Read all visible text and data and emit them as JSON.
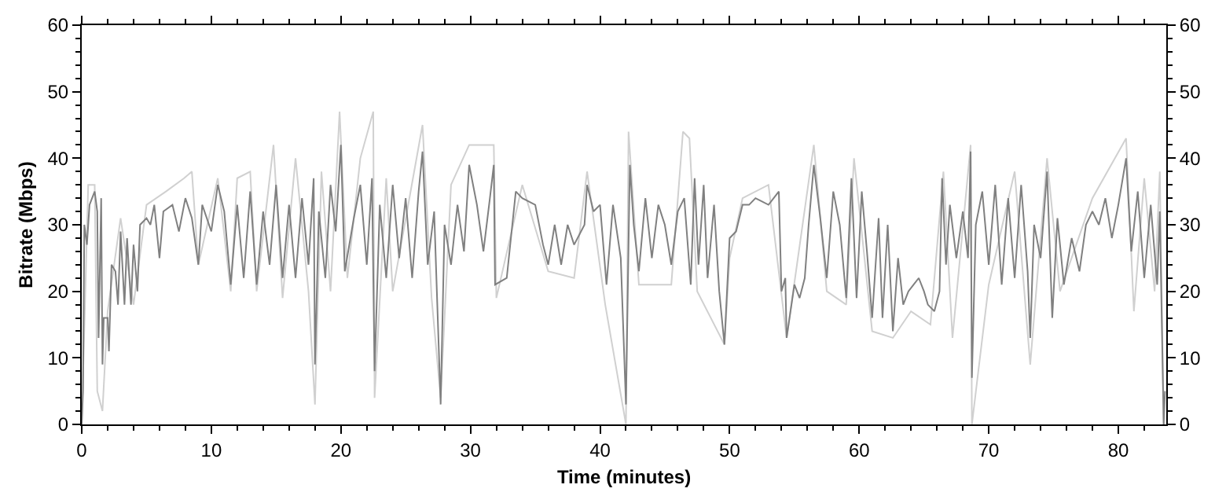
{
  "chart_data": {
    "type": "line",
    "xlabel": "Time (minutes)",
    "ylabel": "Bitrate (Mbps)",
    "xlim": [
      0,
      83.7
    ],
    "xticks": [
      0,
      10,
      20,
      30,
      40,
      50,
      60,
      70,
      80
    ],
    "ylim": [
      0,
      60
    ],
    "yticks": [
      0,
      10,
      20,
      30,
      40,
      50,
      60
    ],
    "y2lim": [
      0,
      60
    ],
    "y2ticks": [
      0,
      10,
      20,
      30,
      40,
      50,
      60
    ],
    "marker": "none",
    "line_style": "solid",
    "series": [
      {
        "color": "#d0d0d0",
        "x": [
          0,
          0.5,
          1.0,
          1.2,
          1.6,
          2,
          3,
          4,
          5,
          6.5,
          7.9,
          8.5,
          9,
          10.5,
          11.5,
          12,
          13,
          13.5,
          14.8,
          15.5,
          16.5,
          17.5,
          18.0,
          18.5,
          19.2,
          19.9,
          20.5,
          21.5,
          22.5,
          22.6,
          23.5,
          24,
          26.3,
          27,
          27.7,
          28.5,
          29.9,
          31.8,
          32,
          34,
          36,
          38,
          39,
          40.4,
          42.0,
          42.2,
          43,
          45.5,
          46.4,
          46.9,
          47.5,
          49.6,
          50,
          51,
          53,
          54.4,
          56.5,
          57.5,
          59,
          59.6,
          61,
          62.6,
          64,
          65.5,
          66.5,
          67.2,
          68.6,
          68.7,
          70,
          72,
          73.2,
          74.5,
          75.5,
          78,
          80.6,
          81.2,
          82,
          82.8,
          83.2,
          83.5
        ],
        "values": [
          0,
          36,
          36,
          5,
          2,
          17,
          31,
          18,
          33,
          35,
          37,
          38,
          24,
          37,
          20,
          37,
          38,
          20,
          42,
          19,
          40,
          20,
          3,
          38,
          20,
          47,
          22,
          40,
          47,
          4,
          37,
          20,
          45,
          19,
          4,
          36,
          42,
          42,
          19,
          36,
          23,
          22,
          38,
          18,
          0,
          44,
          21,
          21,
          44,
          43,
          20,
          12,
          25,
          34,
          36,
          13,
          42,
          20,
          18,
          40,
          14,
          13,
          17,
          15,
          38,
          13,
          42,
          0,
          21,
          38,
          9,
          40,
          20,
          34,
          43,
          17,
          37,
          20,
          38,
          0
        ]
      },
      {
        "color": "#808080",
        "x": [
          0,
          0.1,
          0.2,
          0.4,
          0.6,
          0.8,
          1.0,
          1.2,
          1.3,
          1.5,
          1.6,
          1.7,
          2.0,
          2.1,
          2.3,
          2.6,
          2.8,
          3.0,
          3.3,
          3.5,
          3.8,
          4.0,
          4.3,
          4.5,
          5,
          5.3,
          5.6,
          6,
          6.3,
          7,
          7.5,
          8,
          8.5,
          9,
          9.3,
          10,
          10.5,
          11,
          11.5,
          12,
          12.5,
          13,
          13.5,
          14,
          14.5,
          15,
          15.5,
          16,
          16.5,
          17,
          17.5,
          17.9,
          18.0,
          18.3,
          18.8,
          19.2,
          19.6,
          20,
          20.3,
          21,
          21.5,
          22,
          22.4,
          22.6,
          23,
          23.5,
          24,
          24.5,
          25,
          25.5,
          26,
          26.3,
          26.7,
          27.2,
          27.7,
          28,
          28.5,
          29,
          29.5,
          29.9,
          30.5,
          31,
          31.5,
          31.8,
          31.9,
          32.8,
          33.5,
          34,
          35,
          35.6,
          36,
          36.5,
          37,
          37.5,
          38,
          38.8,
          39,
          39.5,
          40,
          40.5,
          41,
          41.6,
          42.0,
          42.3,
          42.6,
          43,
          43.5,
          44,
          44.5,
          45,
          45.5,
          46,
          46.5,
          47,
          47.3,
          47.6,
          48,
          48.3,
          48.8,
          49.2,
          49.6,
          50,
          50.5,
          51,
          51.5,
          52,
          53,
          53.8,
          54.0,
          54.3,
          54.4,
          55,
          55.4,
          55.8,
          56.1,
          56.5,
          57,
          57.5,
          58,
          58.5,
          59,
          59.4,
          59.8,
          60.2,
          60.6,
          61,
          61.5,
          61.8,
          62.2,
          62.6,
          63.0,
          63.4,
          63.8,
          64.2,
          64.6,
          65,
          65.3,
          65.8,
          66.2,
          66.4,
          66.7,
          67,
          67.5,
          68,
          68.4,
          68.6,
          68.7,
          69,
          69.5,
          70,
          70.5,
          71,
          71.5,
          72,
          72.5,
          73,
          73.2,
          73.5,
          74,
          74.5,
          74.9,
          75.3,
          75.8,
          76.4,
          77,
          77.5,
          78,
          78.5,
          79,
          79.5,
          80,
          80.6,
          81,
          81.5,
          82,
          82.5,
          83,
          83.2,
          83.5,
          83.6
        ],
        "values": [
          0,
          5,
          30,
          27,
          33,
          34,
          35,
          32,
          13,
          34,
          9,
          16,
          16,
          11,
          24,
          23,
          18,
          29,
          18,
          28,
          18,
          27,
          20,
          30,
          31,
          30,
          33,
          25,
          32,
          33,
          29,
          34,
          31,
          24,
          33,
          29,
          36,
          32,
          21,
          33,
          22,
          35,
          21,
          32,
          24,
          36,
          22,
          33,
          22,
          34,
          24,
          37,
          9,
          32,
          22,
          36,
          29,
          42,
          23,
          31,
          36,
          24,
          37,
          8,
          33,
          22,
          36,
          25,
          34,
          22,
          35,
          41,
          24,
          32,
          3,
          30,
          24,
          33,
          26,
          39,
          33,
          26,
          34,
          39,
          21,
          22,
          35,
          34,
          33,
          27,
          24,
          30,
          24,
          30,
          27,
          30,
          36,
          32,
          33,
          21,
          33,
          25,
          3,
          39,
          30,
          23,
          34,
          25,
          33,
          30,
          24,
          32,
          34,
          21,
          37,
          24,
          36,
          22,
          33,
          20,
          12,
          28,
          29,
          33,
          33,
          34,
          33,
          35,
          20,
          22,
          13,
          21,
          19,
          22,
          30,
          39,
          31,
          22,
          35,
          30,
          19,
          37,
          19,
          35,
          26,
          16,
          31,
          16,
          30,
          14,
          25,
          18,
          20,
          21,
          22,
          20,
          18,
          17,
          20,
          37,
          24,
          33,
          25,
          32,
          25,
          41,
          7,
          30,
          35,
          24,
          36,
          21,
          34,
          22,
          36,
          23,
          13,
          30,
          25,
          38,
          16,
          31,
          21,
          28,
          23,
          30,
          32,
          30,
          34,
          28,
          33,
          40,
          26,
          35,
          22,
          33,
          21,
          32,
          0,
          5
        ]
      }
    ]
  }
}
